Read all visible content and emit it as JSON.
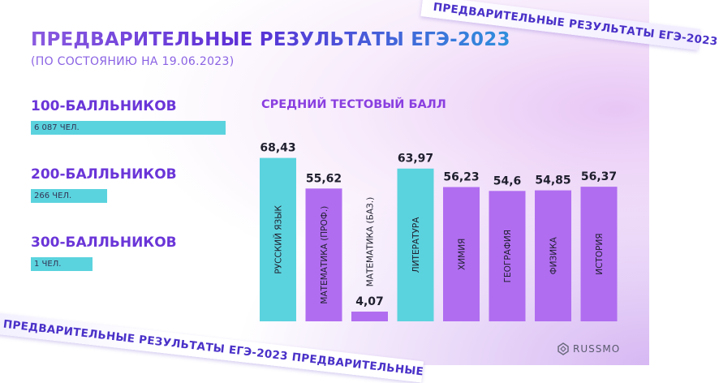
{
  "header": {
    "title": "ПРЕДВАРИТЕЛЬНЫЕ РЕЗУЛЬТАТЫ ЕГЭ-2023",
    "subtitle": "(ПО СОСТОЯНИЮ НА 19.06.2023)"
  },
  "stats": [
    {
      "label": "100-балльников",
      "value": "6 087 чел.",
      "count": 6087,
      "color": "#5bd3de"
    },
    {
      "label": "200-балльников",
      "value": "266 чел.",
      "count": 266,
      "color": "#5bd3de"
    },
    {
      "label": "300-балльников",
      "value": "1 чел.",
      "count": 1,
      "color": "#5bd3de"
    }
  ],
  "ribbon": {
    "top": "ПРЕДВАРИТЕЛЬНЫЕ РЕЗУЛЬТАТЫ ЕГЭ-2023",
    "bottom": "ПРЕДВАРИТЕЛЬНЫЕ РЕЗУЛЬТАТЫ ЕГЭ-2023 ПРЕДВАРИТЕЛЬНЫЕ"
  },
  "logo": {
    "text": "RUSSMO",
    "icon": "russmo-logo-icon"
  },
  "colors": {
    "teal": "#5bd3de",
    "violet": "#b06df0",
    "title_start": "#8a5ae0",
    "title_end": "#2f8fdc"
  },
  "chart_data": {
    "type": "bar",
    "title": "Средний тестовый балл",
    "categories": [
      "Русский язык",
      "Математика (проф.)",
      "Математика (баз.)",
      "Литература",
      "Химия",
      "География",
      "Физика",
      "История"
    ],
    "values": [
      68.43,
      55.62,
      4.07,
      63.97,
      56.23,
      54.6,
      54.85,
      56.37
    ],
    "value_labels": [
      "68,43",
      "55,62",
      "4,07",
      "63,97",
      "56,23",
      "54,6",
      "54,85",
      "56,37"
    ],
    "bar_colors": [
      "#5bd3de",
      "#b06df0",
      "#b06df0",
      "#5bd3de",
      "#b06df0",
      "#b06df0",
      "#b06df0",
      "#b06df0"
    ],
    "ylim": [
      0,
      70
    ],
    "grid": false,
    "xlabel": "",
    "ylabel": ""
  }
}
